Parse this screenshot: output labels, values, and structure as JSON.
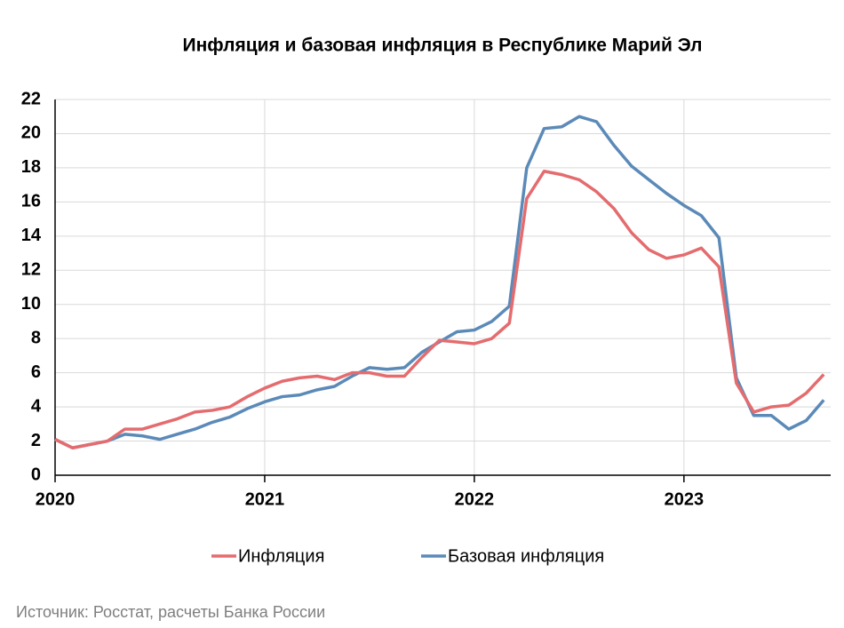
{
  "chart_data": {
    "type": "line",
    "title": "Инфляция и базовая инфляция в Республике Марий Эл",
    "source": "Источник: Росстат, расчеты Банка России",
    "x": [
      2020,
      2020.083,
      2020.167,
      2020.25,
      2020.333,
      2020.417,
      2020.5,
      2020.583,
      2020.667,
      2020.75,
      2020.833,
      2020.917,
      2021,
      2021.083,
      2021.167,
      2021.25,
      2021.333,
      2021.417,
      2021.5,
      2021.583,
      2021.667,
      2021.75,
      2021.833,
      2021.917,
      2022,
      2022.083,
      2022.167,
      2022.25,
      2022.333,
      2022.417,
      2022.5,
      2022.583,
      2022.667,
      2022.75,
      2022.833,
      2022.917,
      2023,
      2023.083,
      2023.167,
      2023.25,
      2023.333,
      2023.417,
      2023.5,
      2023.583,
      2023.667
    ],
    "series": [
      {
        "name": "Инфляция",
        "color": "#e46c6f",
        "values": [
          2.1,
          1.6,
          1.8,
          2.0,
          2.7,
          2.7,
          3.0,
          3.3,
          3.7,
          3.8,
          4.0,
          4.6,
          5.1,
          5.5,
          5.7,
          5.8,
          5.6,
          6.0,
          6.0,
          5.8,
          5.8,
          6.9,
          7.9,
          7.8,
          7.7,
          8.0,
          8.9,
          16.2,
          17.8,
          17.6,
          17.3,
          16.6,
          15.6,
          14.2,
          13.2,
          12.7,
          12.9,
          13.3,
          12.2,
          5.4,
          3.7,
          4.0,
          4.1,
          4.8,
          5.9
        ]
      },
      {
        "name": "Базовая инфляция",
        "color": "#5b8ab8",
        "values": [
          2.1,
          1.6,
          1.8,
          2.0,
          2.4,
          2.3,
          2.1,
          2.4,
          2.7,
          3.1,
          3.4,
          3.9,
          4.3,
          4.6,
          4.7,
          5.0,
          5.2,
          5.8,
          6.3,
          6.2,
          6.3,
          7.2,
          7.8,
          8.4,
          8.5,
          9.0,
          9.9,
          18.0,
          20.3,
          20.4,
          21.0,
          20.7,
          19.3,
          18.1,
          17.3,
          16.5,
          15.8,
          15.2,
          13.9,
          5.7,
          3.5,
          3.5,
          2.7,
          3.2,
          4.4
        ]
      }
    ],
    "xlim": [
      2020,
      2023.7
    ],
    "xticks": [
      2020,
      2021,
      2022,
      2023
    ],
    "ylim": [
      0,
      22
    ],
    "yticks": [
      0,
      2,
      4,
      6,
      8,
      10,
      12,
      14,
      16,
      18,
      20,
      22
    ],
    "grid": true,
    "legend": "bottom"
  }
}
